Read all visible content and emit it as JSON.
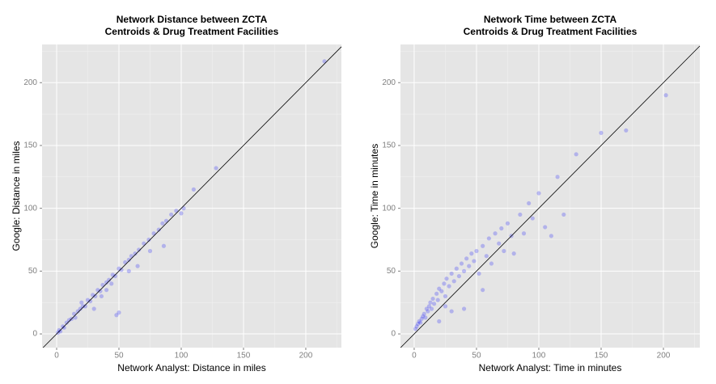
{
  "chart_data": [
    {
      "type": "scatter",
      "title": [
        "Network Distance between ZCTA",
        "Centroids & Drug Treatment Facilities"
      ],
      "x_label": "Network Analyst: Distance in miles",
      "y_label": "Google: Distance in miles",
      "color": "#0000ff",
      "xlim": [
        -11.7,
        228.6
      ],
      "ylim": [
        -10.9,
        230.4
      ],
      "xticks": [
        0,
        50,
        100,
        150,
        200
      ],
      "yticks": [
        0,
        50,
        100,
        150,
        200
      ],
      "xminor": [
        25,
        75,
        125,
        175,
        225
      ],
      "yminor": [
        25,
        75,
        125,
        175,
        225
      ],
      "grid": true,
      "x": [
        1,
        2,
        3,
        5,
        6,
        8,
        10,
        12,
        14,
        15,
        17,
        19,
        21,
        23,
        25,
        27,
        29,
        31,
        33,
        35,
        37,
        40,
        42,
        45,
        47,
        50,
        52,
        55,
        58,
        60,
        63,
        66,
        70,
        74,
        78,
        82,
        85,
        88,
        92,
        96,
        100,
        102,
        110,
        128,
        215,
        48,
        50,
        30,
        86,
        40,
        65,
        58,
        75,
        20,
        36,
        44
      ],
      "values": [
        1,
        3,
        2,
        6,
        5,
        9,
        11,
        12,
        16,
        13,
        18,
        20,
        22,
        22,
        27,
        26,
        31,
        30,
        35,
        34,
        39,
        41,
        43,
        47,
        46,
        52,
        51,
        57,
        59,
        62,
        64,
        67,
        72,
        75,
        80,
        83,
        88,
        90,
        95,
        98,
        96,
        100,
        115,
        132,
        217,
        15,
        17,
        20,
        70,
        35,
        54,
        50,
        66,
        25,
        30,
        40
      ]
    },
    {
      "type": "scatter",
      "title": [
        "Network Time between ZCTA",
        "Centroids & Drug Treatment Facilities"
      ],
      "x_label": "Network Analyst: Time in minutes",
      "y_label": "Google: Time in minutes",
      "color": "#0000ff",
      "xlim": [
        -11,
        229.2
      ],
      "ylim": [
        -10.9,
        230.4
      ],
      "xticks": [
        0,
        50,
        100,
        150,
        200
      ],
      "yticks": [
        0,
        50,
        100,
        150,
        200
      ],
      "xminor": [
        25,
        75,
        125,
        175,
        225
      ],
      "yminor": [
        25,
        75,
        125,
        175,
        225
      ],
      "grid": true,
      "x": [
        1,
        2,
        3,
        4,
        5,
        6,
        7,
        8,
        9,
        10,
        11,
        12,
        13,
        14,
        15,
        16,
        18,
        19,
        20,
        22,
        24,
        25,
        26,
        28,
        30,
        32,
        34,
        36,
        38,
        40,
        42,
        44,
        46,
        48,
        50,
        52,
        55,
        58,
        60,
        62,
        65,
        68,
        70,
        72,
        75,
        78,
        80,
        85,
        88,
        92,
        95,
        100,
        105,
        110,
        115,
        120,
        130,
        150,
        170,
        202,
        40,
        30,
        55,
        20,
        25
      ],
      "values": [
        4,
        6,
        8,
        10,
        9,
        12,
        14,
        16,
        13,
        20,
        18,
        22,
        25,
        20,
        28,
        24,
        32,
        27,
        36,
        34,
        40,
        30,
        44,
        38,
        48,
        42,
        52,
        46,
        56,
        50,
        60,
        54,
        64,
        58,
        66,
        48,
        70,
        62,
        76,
        56,
        80,
        72,
        84,
        66,
        88,
        78,
        64,
        95,
        80,
        104,
        92,
        112,
        85,
        78,
        125,
        95,
        143,
        160,
        162,
        190,
        20,
        18,
        35,
        10,
        22
      ]
    }
  ]
}
